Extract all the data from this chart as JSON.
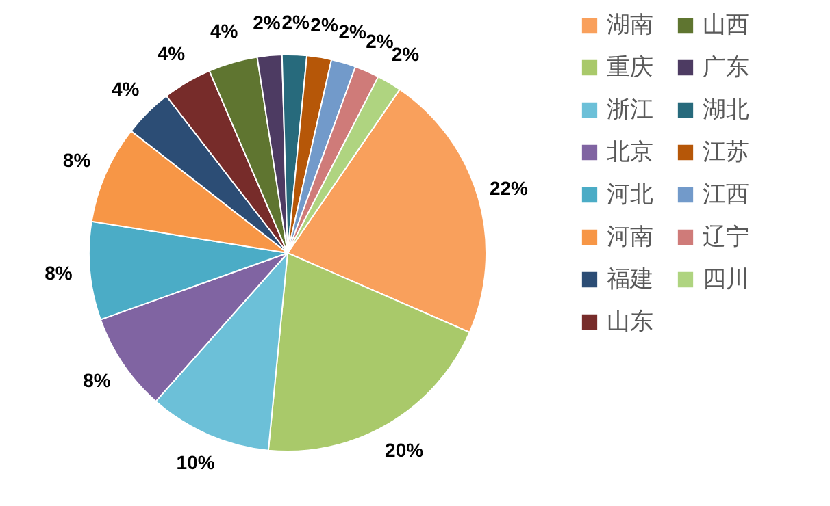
{
  "chart_data": {
    "type": "pie",
    "legend": "right",
    "categories": [
      "湖南",
      "重庆",
      "浙江",
      "北京",
      "河北",
      "河南",
      "福建",
      "山东",
      "山西",
      "广东",
      "湖北",
      "江苏",
      "江西",
      "辽宁",
      "四川"
    ],
    "values": [
      22,
      20,
      10,
      8,
      8,
      8,
      4,
      4,
      4,
      2,
      2,
      2,
      2,
      2,
      2
    ],
    "value_labels": [
      "22%",
      "20%",
      "10%",
      "8%",
      "8%",
      "8%",
      "4%",
      "4%",
      "4%",
      "2%",
      "2%",
      "2%",
      "2%",
      "2%",
      "2%"
    ],
    "colors": [
      "#f9a05c",
      "#a9c96a",
      "#6cc0d8",
      "#8064a2",
      "#4bacc6",
      "#f79646",
      "#2c4d75",
      "#772c2a",
      "#5f7530",
      "#4d3b62",
      "#276a7c",
      "#b65708",
      "#729aca",
      "#cf7b79",
      "#afd480"
    ]
  }
}
